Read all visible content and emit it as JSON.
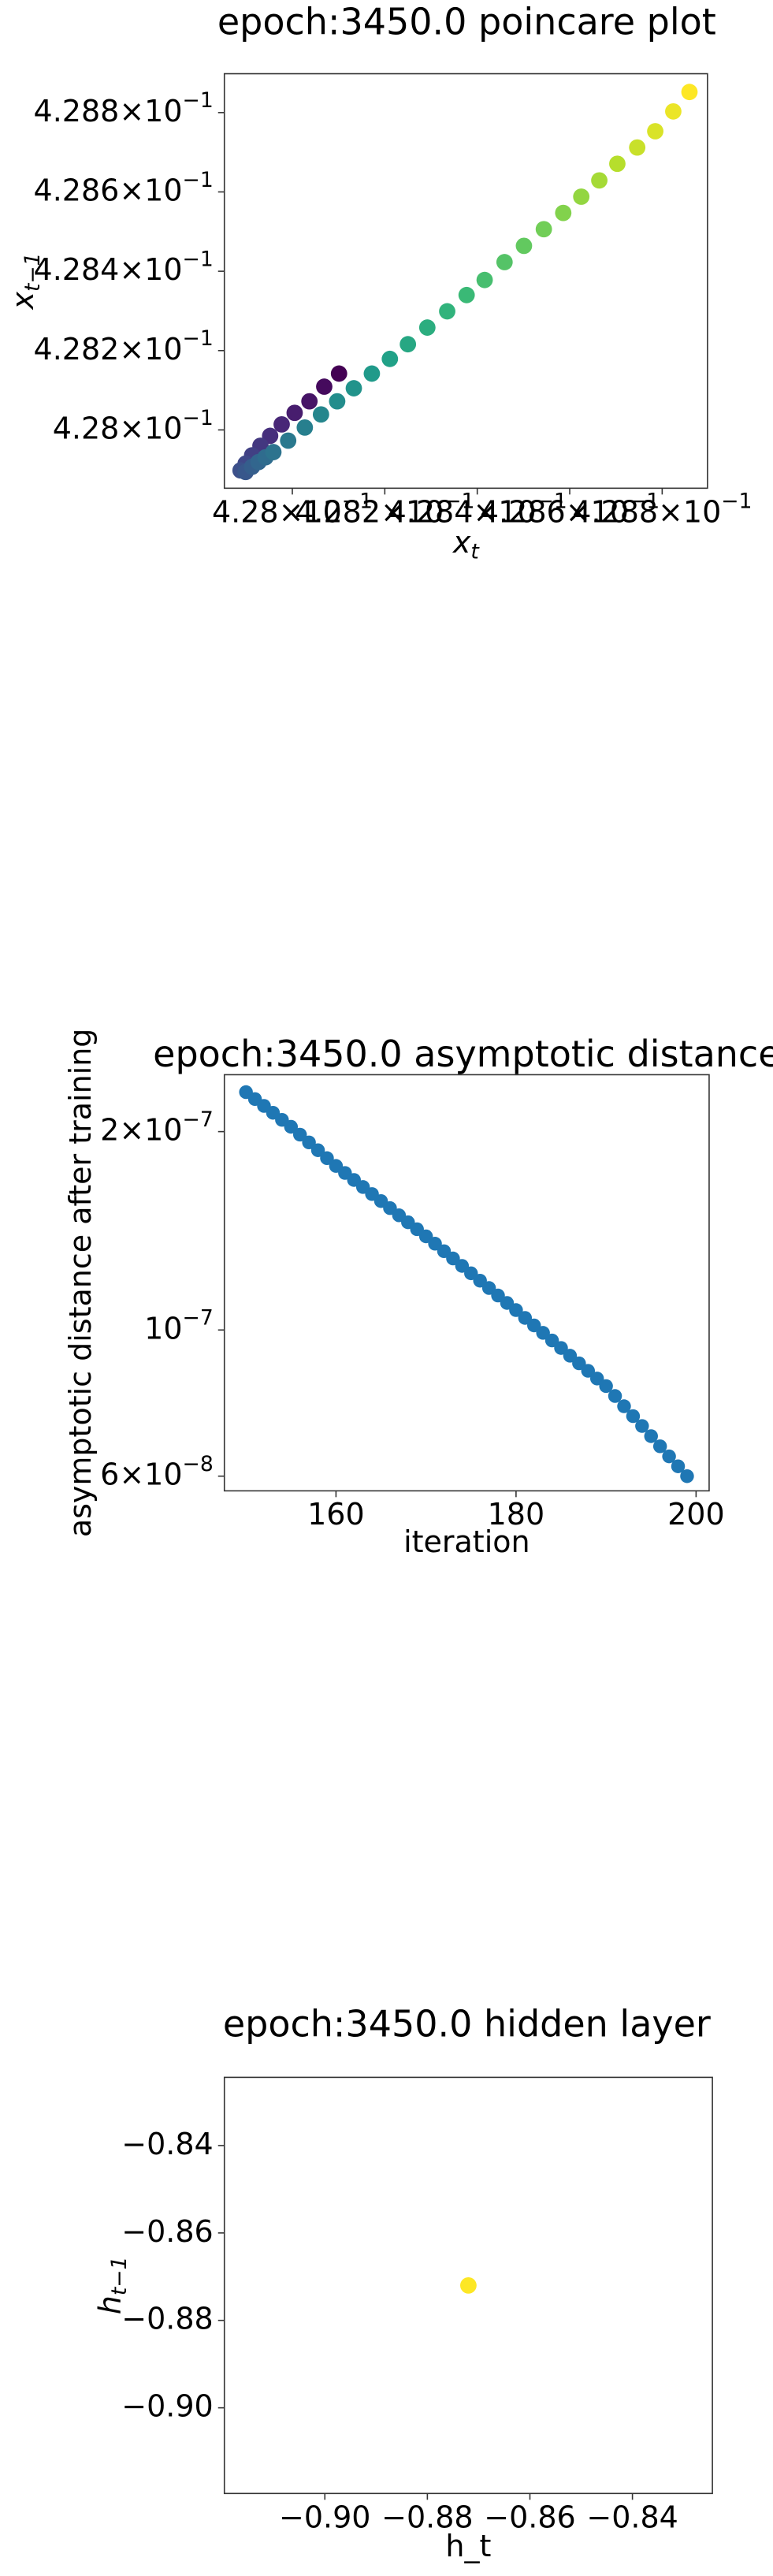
{
  "chart_data": [
    {
      "type": "scatter",
      "title": "epoch:3450.0 poincare plot",
      "xlabel": {
        "text": "x",
        "sub": "t"
      },
      "ylabel": {
        "text": "x",
        "sub": "t−1"
      },
      "cmap": "viridis",
      "x": [
        0.428101,
        0.428069,
        0.428037,
        0.428005,
        0.427977,
        0.427952,
        0.427931,
        0.427913,
        0.427899,
        0.427888,
        0.427899,
        0.427913,
        0.427927,
        0.427942,
        0.427959,
        0.427991,
        0.428027,
        0.428062,
        0.428097,
        0.428133,
        0.428172,
        0.428211,
        0.42825,
        0.428292,
        0.428335,
        0.428377,
        0.428416,
        0.428459,
        0.428501,
        0.428544,
        0.428586,
        0.428625,
        0.428664,
        0.428703,
        0.428746,
        0.428785,
        0.428824,
        0.428859
      ],
      "y": [
        0.428142,
        0.428109,
        0.428072,
        0.428043,
        0.428014,
        0.427985,
        0.42796,
        0.427936,
        0.427915,
        0.427898,
        0.427894,
        0.427907,
        0.427919,
        0.427931,
        0.427944,
        0.427973,
        0.428006,
        0.428039,
        0.428072,
        0.428105,
        0.428142,
        0.428179,
        0.428216,
        0.428258,
        0.428299,
        0.42834,
        0.428378,
        0.428423,
        0.428464,
        0.428506,
        0.428547,
        0.428588,
        0.428629,
        0.428671,
        0.428712,
        0.428753,
        0.428803,
        0.428852
      ],
      "xlim": [
        0.427853,
        0.428898
      ],
      "ylim": [
        0.427853,
        0.428898
      ],
      "xticks": [
        {
          "value": 0.428,
          "label": "4.28×10",
          "exp": "−1"
        },
        {
          "value": 0.4282,
          "label": "4.282×10",
          "exp": "−1"
        },
        {
          "value": 0.4284,
          "label": "4.284×10",
          "exp": "−1"
        },
        {
          "value": 0.4286,
          "label": "4.286×10",
          "exp": "−1"
        },
        {
          "value": 0.4288,
          "label": "4.288×10",
          "exp": "−1"
        }
      ],
      "yticks": [
        {
          "value": 0.428,
          "label": "4.28×10",
          "exp": "−1"
        },
        {
          "value": 0.4282,
          "label": "4.282×10",
          "exp": "−1"
        },
        {
          "value": 0.4284,
          "label": "4.284×10",
          "exp": "−1"
        },
        {
          "value": 0.4286,
          "label": "4.286×10",
          "exp": "−1"
        },
        {
          "value": 0.4288,
          "label": "4.288×10",
          "exp": "−1"
        }
      ]
    },
    {
      "type": "scatter",
      "title": "epoch:3450.0 asymptotic distance",
      "xlabel": {
        "text": "iteration"
      },
      "ylabel": {
        "text": "asymptotic distance after training"
      },
      "color": "#1f77b4",
      "yscale": "log",
      "x": [
        150,
        151,
        152,
        153,
        154,
        155,
        156,
        157,
        158,
        159,
        160,
        161,
        162,
        163,
        164,
        165,
        166,
        167,
        168,
        169,
        170,
        171,
        172,
        173,
        174,
        175,
        176,
        177,
        178,
        179,
        180,
        181,
        182,
        183,
        184,
        185,
        186,
        187,
        188,
        189,
        190,
        191,
        192,
        193,
        194,
        195,
        196,
        197,
        198,
        199
      ],
      "y": [
        2.296e-07,
        2.241e-07,
        2.188e-07,
        2.136e-07,
        2.084e-07,
        2.034e-07,
        1.979e-07,
        1.926e-07,
        1.874e-07,
        1.823e-07,
        1.774e-07,
        1.731e-07,
        1.689e-07,
        1.648e-07,
        1.608e-07,
        1.569e-07,
        1.531e-07,
        1.493e-07,
        1.457e-07,
        1.422e-07,
        1.387e-07,
        1.352e-07,
        1.317e-07,
        1.284e-07,
        1.251e-07,
        1.219e-07,
        1.188e-07,
        1.158e-07,
        1.128e-07,
        1.099e-07,
        1.072e-07,
        1.043e-07,
        1.016e-07,
        9.9e-08,
        9.64e-08,
        9.39e-08,
        9.14e-08,
        8.9e-08,
        8.67e-08,
        8.44e-08,
        8.22e-08,
        7.94e-08,
        7.66e-08,
        7.4e-08,
        7.15e-08,
        6.9e-08,
        6.66e-08,
        6.43e-08,
        6.21e-08,
        6e-08
      ],
      "xlim": [
        147.6,
        201.45
      ],
      "ylim": [
        5.7e-08,
        2.44e-07
      ],
      "xticks": [
        160,
        180,
        200
      ],
      "yticks": [
        {
          "value": 2e-07,
          "label": "2×10",
          "exp": "−7"
        },
        {
          "value": 1e-07,
          "label": "10",
          "exp": "−7"
        },
        {
          "value": 6e-08,
          "label": "6×10",
          "exp": "−8"
        }
      ]
    },
    {
      "type": "scatter",
      "title": "epoch:3450.0 hidden layer",
      "xlabel": {
        "text": "h_t"
      },
      "ylabel": {
        "text": "h",
        "sub": "t−1"
      },
      "color": "#fde725",
      "x": [
        -0.872
      ],
      "y": [
        -0.872
      ],
      "xlim": [
        -0.9196,
        -0.8244
      ],
      "ylim": [
        -0.9196,
        -0.8244
      ],
      "xticks": [
        {
          "value": -0.9,
          "label": "−0.90"
        },
        {
          "value": -0.88,
          "label": "−0.88"
        },
        {
          "value": -0.86,
          "label": "−0.86"
        },
        {
          "value": -0.84,
          "label": "−0.84"
        }
      ],
      "yticks": [
        {
          "value": -0.9,
          "label": "−0.90"
        },
        {
          "value": -0.88,
          "label": "−0.88"
        },
        {
          "value": -0.86,
          "label": "−0.86"
        },
        {
          "value": -0.84,
          "label": "−0.84"
        }
      ]
    }
  ]
}
